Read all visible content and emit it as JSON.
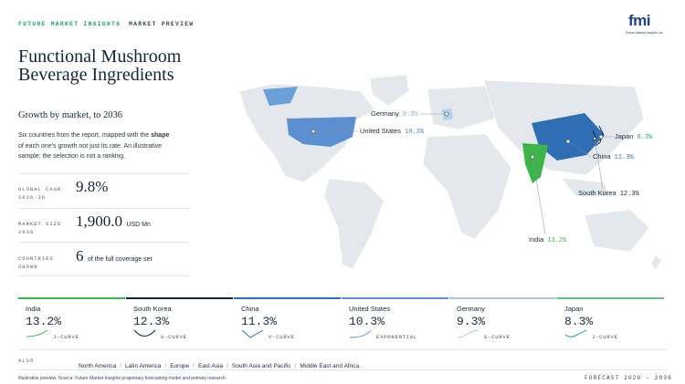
{
  "header": {
    "brand": "FUTURE MARKET INSIGHTS",
    "separator": "·",
    "section": "MARKET PREVIEW",
    "logo": "fmi",
    "logo_caption": "Future Market Insights Inc."
  },
  "title": "Functional Mushroom Beverage Ingredients",
  "subtitle": "Growth by market, to 2036",
  "description": {
    "before": "Six countries from the report, mapped with the",
    "bold": "shape",
    "after": "of each one’s growth not just its rate. An illustrative sample; the selection is not a ranking."
  },
  "stats": [
    {
      "label": "GLOBAL CAGR 2026-36",
      "value": "9.8%"
    },
    {
      "label": "MARKET SIZE 2036",
      "value": "1,900.0",
      "unit": "USD Mn"
    },
    {
      "label": "COUNTRIES SHOWN",
      "value": "6",
      "unit": "of the full coverage set"
    }
  ],
  "map_labels": [
    {
      "name": "Germany",
      "value": "9.3%"
    },
    {
      "name": "United States",
      "value": "10.3%"
    },
    {
      "name": "Japan",
      "value": "8.3%"
    },
    {
      "name": "China",
      "value": "11.3%"
    },
    {
      "name": "South Korea",
      "value": "12.3%"
    },
    {
      "name": "India",
      "value": "13.2%"
    }
  ],
  "cards": [
    {
      "name": "India",
      "value": "13.2%",
      "curve": "J-CURVE"
    },
    {
      "name": "South Korea",
      "value": "12.3%",
      "curve": "U-CURVE"
    },
    {
      "name": "China",
      "value": "11.3%",
      "curve": "V-CURVE"
    },
    {
      "name": "United States",
      "value": "10.3%",
      "curve": "EXPONENTIAL"
    },
    {
      "name": "Germany",
      "value": "9.3%",
      "curve": "S-CURVE"
    },
    {
      "name": "Japan",
      "value": "8.3%",
      "curve": "J-CURVE"
    }
  ],
  "also": {
    "label": "ALSO",
    "regions": [
      "North America",
      "Latin America",
      "Europe",
      "East Asia",
      "South Asia and Pacific",
      "Middle East and Africa."
    ],
    "separator": "/"
  },
  "footer": {
    "note": "Illustrative preview. Source: Future Market Insights proprietary forecasting model and primary research.",
    "forecast": "FORECAST 2026 – 2036"
  }
}
